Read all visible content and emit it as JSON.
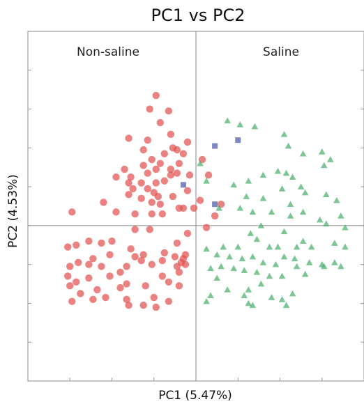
{
  "chart_data": {
    "type": "scatter",
    "title": "PC1 vs PC2",
    "xlabel": "PC1 (5.47%)",
    "ylabel": "PC2 (4.53%)",
    "xlim": [
      -4,
      4
    ],
    "ylim": [
      -4,
      5
    ],
    "grid": false,
    "group_labels": {
      "left": "Non-saline",
      "right": "Saline"
    },
    "series": [
      {
        "marker": "circle",
        "color": "#e0524f",
        "points": [
          [
            -0.95,
            3.35
          ],
          [
            -1.1,
            3.0
          ],
          [
            -0.65,
            2.95
          ],
          [
            -0.85,
            2.65
          ],
          [
            -0.6,
            2.35
          ],
          [
            -1.6,
            2.25
          ],
          [
            -1.15,
            2.2
          ],
          [
            -0.55,
            2.0
          ],
          [
            -0.2,
            2.15
          ],
          [
            -1.25,
            1.95
          ],
          [
            -0.45,
            1.95
          ],
          [
            -0.75,
            1.85
          ],
          [
            -0.3,
            1.85
          ],
          [
            -1.05,
            1.7
          ],
          [
            -0.85,
            1.6
          ],
          [
            -0.4,
            1.6
          ],
          [
            -1.25,
            1.55
          ],
          [
            -0.95,
            1.45
          ],
          [
            -0.6,
            1.45
          ],
          [
            -0.45,
            1.35
          ],
          [
            -1.7,
            1.45
          ],
          [
            -1.15,
            1.35
          ],
          [
            -1.55,
            1.25
          ],
          [
            -1.9,
            1.25
          ],
          [
            -1.6,
            1.1
          ],
          [
            -1.3,
            1.1
          ],
          [
            -0.75,
            1.15
          ],
          [
            -1.5,
            0.95
          ],
          [
            -1.15,
            0.95
          ],
          [
            -1.6,
            0.8
          ],
          [
            -1.0,
            0.85
          ],
          [
            -1.3,
            0.7
          ],
          [
            -0.6,
            1.3
          ],
          [
            -0.95,
            1.1
          ],
          [
            -0.9,
            0.75
          ],
          [
            -0.55,
            0.75
          ],
          [
            -1.05,
            0.6
          ],
          [
            -2.2,
            0.6
          ],
          [
            -2.95,
            0.35
          ],
          [
            -0.85,
            0.55
          ],
          [
            -0.4,
            0.45
          ],
          [
            -1.9,
            0.35
          ],
          [
            -1.45,
            0.3
          ],
          [
            -1.05,
            0.3
          ],
          [
            -0.8,
            0.3
          ],
          [
            -0.3,
            0.45
          ],
          [
            -1.45,
            -0.1
          ],
          [
            -1.1,
            -0.1
          ],
          [
            -2.0,
            -0.4
          ],
          [
            -2.25,
            -0.45
          ],
          [
            -2.55,
            -0.4
          ],
          [
            -2.85,
            -0.5
          ],
          [
            -3.05,
            -0.55
          ],
          [
            -2.05,
            -0.75
          ],
          [
            -1.55,
            -0.6
          ],
          [
            -1.45,
            -0.8
          ],
          [
            -1.25,
            -0.75
          ],
          [
            -0.75,
            -0.7
          ],
          [
            -0.45,
            -0.45
          ],
          [
            -2.45,
            -0.85
          ],
          [
            -2.55,
            -1.0
          ],
          [
            -2.8,
            -0.95
          ],
          [
            -3.0,
            -1.05
          ],
          [
            -2.25,
            -1.05
          ],
          [
            -1.65,
            -1.05
          ],
          [
            -1.3,
            -0.9
          ],
          [
            -1.05,
            -1.0
          ],
          [
            -0.8,
            -0.9
          ],
          [
            -0.45,
            -1.05
          ],
          [
            -0.3,
            -0.85
          ],
          [
            -0.25,
            -1.0
          ],
          [
            -0.4,
            -1.2
          ],
          [
            -1.8,
            -1.2
          ],
          [
            -2.05,
            -1.3
          ],
          [
            -2.55,
            -1.35
          ],
          [
            -2.85,
            -1.45
          ],
          [
            -3.05,
            -1.3
          ],
          [
            -0.8,
            -1.3
          ],
          [
            -0.65,
            -1.45
          ],
          [
            -1.65,
            -1.5
          ],
          [
            -1.8,
            -1.6
          ],
          [
            -2.35,
            -1.65
          ],
          [
            -3.0,
            -1.55
          ],
          [
            -2.75,
            -1.75
          ],
          [
            -2.95,
            -1.95
          ],
          [
            -2.15,
            -1.85
          ],
          [
            -1.65,
            -1.9
          ],
          [
            -1.2,
            -1.55
          ],
          [
            -1.0,
            -1.85
          ],
          [
            -0.65,
            -1.95
          ],
          [
            -1.6,
            -2.05
          ],
          [
            -1.25,
            -2.05
          ],
          [
            -0.95,
            -2.1
          ],
          [
            -2.45,
            -1.9
          ],
          [
            -0.4,
            -1.55
          ],
          [
            -0.35,
            -0.95
          ],
          [
            -0.25,
            -0.75
          ],
          [
            -0.5,
            -0.8
          ],
          [
            -0.2,
            -0.2
          ],
          [
            0.25,
            -0.05
          ],
          [
            0.45,
            0.25
          ],
          [
            0.3,
            1.3
          ],
          [
            0.15,
            1.7
          ],
          [
            -0.15,
            1.3
          ],
          [
            -0.05,
            0.45
          ],
          [
            0.1,
            0.65
          ],
          [
            -0.2,
            0.9
          ],
          [
            0.6,
            0.55
          ]
        ]
      },
      {
        "marker": "triangle",
        "color": "#4caf6e",
        "points": [
          [
            0.75,
            2.7
          ],
          [
            1.05,
            2.6
          ],
          [
            1.4,
            2.55
          ],
          [
            2.1,
            2.35
          ],
          [
            2.2,
            2.05
          ],
          [
            2.55,
            1.85
          ],
          [
            2.15,
            1.35
          ],
          [
            2.3,
            1.25
          ],
          [
            3.0,
            1.9
          ],
          [
            3.2,
            1.7
          ],
          [
            3.05,
            1.55
          ],
          [
            1.95,
            1.4
          ],
          [
            2.5,
            1.0
          ],
          [
            2.05,
            0.95
          ],
          [
            2.6,
            0.85
          ],
          [
            3.1,
            0.8
          ],
          [
            3.35,
            0.65
          ],
          [
            0.1,
            1.6
          ],
          [
            0.25,
            1.15
          ],
          [
            0.9,
            1.05
          ],
          [
            1.25,
            1.15
          ],
          [
            1.6,
            1.3
          ],
          [
            1.2,
            0.75
          ],
          [
            1.6,
            0.7
          ],
          [
            0.55,
            0.45
          ],
          [
            1.05,
            0.45
          ],
          [
            1.35,
            0.35
          ],
          [
            1.8,
            0.35
          ],
          [
            2.25,
            0.25
          ],
          [
            2.55,
            0.35
          ],
          [
            2.95,
            0.15
          ],
          [
            3.1,
            0.05
          ],
          [
            3.45,
            0.25
          ],
          [
            3.55,
            -0.05
          ],
          [
            1.55,
            0.0
          ],
          [
            2.1,
            -0.15
          ],
          [
            1.45,
            -0.35
          ],
          [
            1.75,
            -0.55
          ],
          [
            2.55,
            -0.4
          ],
          [
            2.75,
            -0.55
          ],
          [
            3.3,
            -0.45
          ],
          [
            3.55,
            -0.55
          ],
          [
            0.25,
            -0.6
          ],
          [
            0.5,
            -0.75
          ],
          [
            0.8,
            -0.8
          ],
          [
            1.1,
            -0.85
          ],
          [
            1.35,
            -0.8
          ],
          [
            1.6,
            -0.95
          ],
          [
            1.9,
            -1.0
          ],
          [
            2.1,
            -0.8
          ],
          [
            2.35,
            -0.85
          ],
          [
            2.7,
            -0.95
          ],
          [
            3.0,
            -1.0
          ],
          [
            3.3,
            -0.95
          ],
          [
            3.45,
            -1.05
          ],
          [
            0.35,
            -1.1
          ],
          [
            0.6,
            -1.05
          ],
          [
            0.9,
            -1.1
          ],
          [
            1.15,
            -1.15
          ],
          [
            1.45,
            -1.2
          ],
          [
            1.75,
            -1.3
          ],
          [
            2.05,
            -1.3
          ],
          [
            2.4,
            -1.05
          ],
          [
            2.6,
            -1.25
          ],
          [
            0.5,
            -1.35
          ],
          [
            1.25,
            -1.65
          ],
          [
            1.55,
            -1.5
          ],
          [
            0.35,
            -1.8
          ],
          [
            0.25,
            -1.95
          ],
          [
            0.75,
            -1.65
          ],
          [
            1.15,
            -1.8
          ],
          [
            1.25,
            -2.0
          ],
          [
            1.8,
            -1.85
          ],
          [
            2.05,
            -1.9
          ],
          [
            2.3,
            -1.75
          ],
          [
            2.15,
            -2.05
          ],
          [
            1.35,
            -2.05
          ],
          [
            3.05,
            -1.05
          ],
          [
            2.4,
            -0.55
          ],
          [
            1.95,
            -0.55
          ],
          [
            1.0,
            -0.55
          ],
          [
            0.65,
            -0.55
          ],
          [
            1.3,
            -0.2
          ],
          [
            2.25,
            0.55
          ]
        ]
      },
      {
        "marker": "square",
        "color": "#7f86c4",
        "points": [
          [
            0.45,
            2.05
          ],
          [
            1.0,
            2.2
          ],
          [
            -0.3,
            1.05
          ],
          [
            0.45,
            0.55
          ]
        ]
      }
    ]
  }
}
